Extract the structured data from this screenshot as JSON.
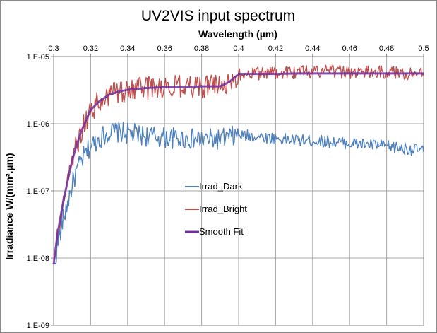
{
  "chart_data": {
    "type": "line",
    "title": "UV2VIS input spectrum",
    "xlabel": "Wavelength (µm)",
    "ylabel": "Irradiance W/(mm².µm)",
    "xaxis_position": "top",
    "xlim": [
      0.3,
      0.5
    ],
    "ylim": [
      1e-09,
      1e-05
    ],
    "yscale": "log",
    "grid": true,
    "legend_position": "center-left",
    "x_ticks": [
      "0.3",
      "0.32",
      "0.34",
      "0.36",
      "0.38",
      "0.4",
      "0.42",
      "0.44",
      "0.46",
      "0.48",
      "0.5"
    ],
    "y_ticks": [
      "1.E-09",
      "1.E-08",
      "1.E-07",
      "1.E-06",
      "1.E-05"
    ],
    "x": [
      0.3,
      0.302,
      0.305,
      0.308,
      0.31,
      0.312,
      0.315,
      0.318,
      0.32,
      0.325,
      0.33,
      0.335,
      0.34,
      0.35,
      0.36,
      0.37,
      0.38,
      0.39,
      0.395,
      0.4,
      0.41,
      0.42,
      0.43,
      0.44,
      0.45,
      0.46,
      0.47,
      0.48,
      0.49,
      0.5
    ],
    "series": [
      {
        "name": "Irrad_Dark",
        "color": "#4f81bd",
        "noisy": true,
        "values": [
          7e-09,
          1.5e-08,
          3.5e-08,
          7.5e-08,
          1.2e-07,
          1.8e-07,
          2.8e-07,
          3.8e-07,
          4.6e-07,
          6.2e-07,
          7.4e-07,
          7.5e-07,
          7.2e-07,
          6.6e-07,
          6.2e-07,
          6e-07,
          5.8e-07,
          5.9e-07,
          6.3e-07,
          6.7e-07,
          6.5e-07,
          6e-07,
          5.7e-07,
          5.6e-07,
          5.4e-07,
          5.1e-07,
          4.9e-07,
          4.6e-07,
          4.3e-07,
          4e-07
        ]
      },
      {
        "name": "Irrad_Bright",
        "color": "#c0504d",
        "noisy": true,
        "values": [
          8e-09,
          2.2e-08,
          6.5e-08,
          1.6e-07,
          2.8e-07,
          4.4e-07,
          7.8e-07,
          1.2e-06,
          1.6e-06,
          2.2e-06,
          2.8e-06,
          3e-06,
          3.2e-06,
          3.4e-06,
          3.5e-06,
          3.5e-06,
          3.6e-06,
          3.6e-06,
          4.2e-06,
          5.5e-06,
          5.6e-06,
          5.7e-06,
          5.8e-06,
          5.9e-06,
          6e-06,
          5.9e-06,
          5.8e-06,
          5.8e-06,
          5.7e-06,
          5.6e-06
        ]
      },
      {
        "name": "Smooth Fit",
        "color": "#7030a0",
        "noisy": false,
        "values": [
          8e-09,
          2.2e-08,
          6.5e-08,
          1.6e-07,
          2.8e-07,
          4.4e-07,
          7.8e-07,
          1.2e-06,
          1.6e-06,
          2.2e-06,
          2.7e-06,
          3e-06,
          3.2e-06,
          3.4e-06,
          3.5e-06,
          3.5e-06,
          3.6e-06,
          3.6e-06,
          4.2e-06,
          5.5e-06,
          5.5e-06,
          5.5e-06,
          5.6e-06,
          5.6e-06,
          5.6e-06,
          5.6e-06,
          5.6e-06,
          5.6e-06,
          5.6e-06,
          5.6e-06
        ]
      }
    ]
  }
}
